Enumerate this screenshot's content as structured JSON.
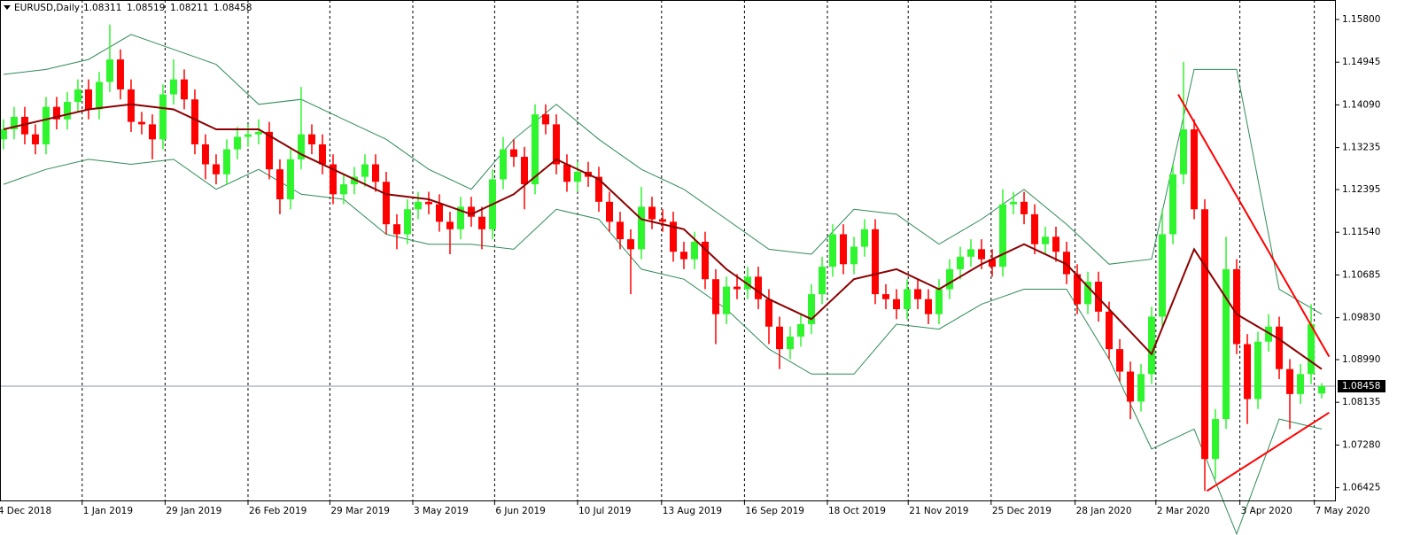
{
  "chart_data": {
    "type": "candlestick",
    "title": "EURUSD,Daily",
    "bull_color": "#2ef52e",
    "bear_color": "#ff0000",
    "xlim": [
      -0.33,
      125.33
    ],
    "ylim": [
      1.0617,
      1.1619
    ],
    "grid": true,
    "yticks": [
      {
        "value": 1.158,
        "label": "1.15800"
      },
      {
        "value": 1.14945,
        "label": "1.14945"
      },
      {
        "value": 1.1409,
        "label": "1.14090"
      },
      {
        "value": 1.13235,
        "label": "1.13235"
      },
      {
        "value": 1.12395,
        "label": "1.12395"
      },
      {
        "value": 1.1154,
        "label": "1.11540"
      },
      {
        "value": 1.10685,
        "label": "1.10685"
      },
      {
        "value": 1.0983,
        "label": "1.09830"
      },
      {
        "value": 1.0899,
        "label": "1.08990"
      },
      {
        "value": 1.08135,
        "label": "1.08135"
      },
      {
        "value": 1.0728,
        "label": "1.07280"
      },
      {
        "value": 1.06425,
        "label": "1.06425"
      }
    ],
    "xticks": [
      {
        "value": -0.6,
        "label": "4 Dec 2018"
      },
      {
        "value": 7.4,
        "label": "1 Jan 2019"
      },
      {
        "value": 15.2,
        "label": "29 Jan 2019"
      },
      {
        "value": 23,
        "label": "26 Feb 2019"
      },
      {
        "value": 30.7,
        "label": "29 Mar 2019"
      },
      {
        "value": 38.5,
        "label": "3 May 2019"
      },
      {
        "value": 46.2,
        "label": "6 Jun 2019"
      },
      {
        "value": 54,
        "label": "10 Jul 2019"
      },
      {
        "value": 61.9,
        "label": "13 Aug 2019"
      },
      {
        "value": 69.7,
        "label": "16 Sep 2019"
      },
      {
        "value": 77.5,
        "label": "18 Oct 2019"
      },
      {
        "value": 85.1,
        "label": "21 Nov 2019"
      },
      {
        "value": 92.9,
        "label": "25 Dec 2019"
      },
      {
        "value": 100.8,
        "label": "28 Jan 2020"
      },
      {
        "value": 108.4,
        "label": "2 Mar 2020"
      },
      {
        "value": 116.3,
        "label": "3 Apr 2020"
      },
      {
        "value": 123.3,
        "label": "7 May 2020"
      }
    ],
    "open": [
      1.134,
      1.136,
      1.1385,
      1.135,
      1.133,
      1.1405,
      1.138,
      1.1415,
      1.144,
      1.14,
      1.1455,
      1.15,
      1.144,
      1.1375,
      1.137,
      1.134,
      1.143,
      1.146,
      1.142,
      1.133,
      1.129,
      1.127,
      1.132,
      1.1345,
      1.135,
      1.1355,
      1.128,
      1.122,
      1.13,
      1.135,
      1.133,
      1.129,
      1.123,
      1.125,
      1.1265,
      1.129,
      1.1255,
      1.117,
      1.115,
      1.12,
      1.1215,
      1.121,
      1.1175,
      1.116,
      1.1205,
      1.1185,
      1.116,
      1.126,
      1.132,
      1.1305,
      1.125,
      1.139,
      1.137,
      1.129,
      1.1255,
      1.1275,
      1.1265,
      1.1215,
      1.1175,
      1.114,
      1.112,
      1.1205,
      1.118,
      1.1175,
      1.1115,
      1.11,
      1.1135,
      1.106,
      1.099,
      1.1045,
      1.104,
      1.1065,
      1.102,
      1.0965,
      1.092,
      1.0945,
      1.097,
      1.103,
      1.1085,
      1.115,
      1.109,
      1.1125,
      1.116,
      1.103,
      1.102,
      1.1,
      1.104,
      1.102,
      1.099,
      1.104,
      1.108,
      1.1105,
      1.112,
      1.11,
      1.1085,
      1.121,
      1.1215,
      1.119,
      1.113,
      1.1145,
      1.1115,
      1.107,
      1.101,
      1.1055,
      1.0995,
      1.092,
      1.0875,
      1.0815,
      1.087,
      1.0985,
      1.115,
      1.127,
      1.136,
      1.12,
      1.07,
      1.078,
      1.108,
      1.093,
      1.082,
      1.0935,
      1.0965,
      1.088,
      1.083,
      1.087,
      1.08311
    ],
    "high": [
      1.138,
      1.1405,
      1.1405,
      1.137,
      1.1425,
      1.1425,
      1.1435,
      1.146,
      1.146,
      1.1475,
      1.157,
      1.152,
      1.146,
      1.1395,
      1.139,
      1.145,
      1.15,
      1.148,
      1.144,
      1.135,
      1.131,
      1.134,
      1.1365,
      1.137,
      1.138,
      1.1375,
      1.13,
      1.132,
      1.1445,
      1.137,
      1.135,
      1.131,
      1.127,
      1.1285,
      1.131,
      1.131,
      1.1275,
      1.119,
      1.122,
      1.1235,
      1.1235,
      1.123,
      1.1195,
      1.1225,
      1.1225,
      1.1205,
      1.128,
      1.1345,
      1.134,
      1.1325,
      1.141,
      1.141,
      1.139,
      1.131,
      1.1295,
      1.1295,
      1.1285,
      1.1235,
      1.1195,
      1.116,
      1.1245,
      1.1225,
      1.12,
      1.1195,
      1.1135,
      1.1155,
      1.1155,
      1.108,
      1.1065,
      1.107,
      1.1085,
      1.1085,
      1.104,
      1.0985,
      1.0965,
      1.099,
      1.105,
      1.1105,
      1.117,
      1.117,
      1.1145,
      1.118,
      1.118,
      1.105,
      1.104,
      1.106,
      1.106,
      1.104,
      1.106,
      1.11,
      1.1125,
      1.114,
      1.114,
      1.112,
      1.124,
      1.1235,
      1.1235,
      1.121,
      1.1165,
      1.1165,
      1.1135,
      1.109,
      1.1075,
      1.1075,
      1.1015,
      1.094,
      1.0895,
      1.089,
      1.1005,
      1.12,
      1.129,
      1.1495,
      1.138,
      1.122,
      1.08,
      1.1145,
      1.11,
      1.095,
      1.0955,
      1.099,
      1.0985,
      1.09,
      1.089,
      1.101,
      1.08519
    ],
    "low": [
      1.132,
      1.134,
      1.133,
      1.131,
      1.131,
      1.136,
      1.136,
      1.1395,
      1.138,
      1.138,
      1.1435,
      1.142,
      1.1355,
      1.135,
      1.13,
      1.132,
      1.141,
      1.14,
      1.131,
      1.126,
      1.125,
      1.125,
      1.13,
      1.1325,
      1.133,
      1.126,
      1.119,
      1.12,
      1.128,
      1.131,
      1.127,
      1.121,
      1.121,
      1.123,
      1.1245,
      1.1235,
      1.115,
      1.112,
      1.113,
      1.118,
      1.119,
      1.1155,
      1.111,
      1.114,
      1.1165,
      1.112,
      1.114,
      1.124,
      1.1285,
      1.12,
      1.123,
      1.135,
      1.127,
      1.1235,
      1.1235,
      1.1245,
      1.1195,
      1.1155,
      1.112,
      1.103,
      1.11,
      1.116,
      1.1155,
      1.1095,
      1.108,
      1.108,
      1.104,
      1.093,
      1.097,
      1.102,
      1.102,
      1.1,
      1.093,
      1.088,
      1.09,
      1.0925,
      1.095,
      1.101,
      1.1065,
      1.107,
      1.107,
      1.1105,
      1.101,
      1.1,
      1.098,
      1.098,
      1.1,
      1.097,
      1.097,
      1.102,
      1.106,
      1.1085,
      1.108,
      1.1065,
      1.1065,
      1.119,
      1.117,
      1.111,
      1.111,
      1.1095,
      1.105,
      1.099,
      1.099,
      1.0975,
      1.09,
      1.0855,
      1.078,
      1.0795,
      1.085,
      1.0965,
      1.113,
      1.125,
      1.118,
      1.0636,
      1.066,
      1.076,
      1.091,
      1.077,
      1.08,
      1.0915,
      1.086,
      1.076,
      1.081,
      1.085,
      1.08211
    ],
    "close": [
      1.136,
      1.1385,
      1.135,
      1.133,
      1.1405,
      1.138,
      1.1415,
      1.144,
      1.14,
      1.1455,
      1.15,
      1.144,
      1.1375,
      1.137,
      1.134,
      1.143,
      1.146,
      1.142,
      1.133,
      1.129,
      1.127,
      1.132,
      1.1345,
      1.135,
      1.1355,
      1.128,
      1.122,
      1.13,
      1.135,
      1.133,
      1.129,
      1.123,
      1.125,
      1.1265,
      1.129,
      1.1255,
      1.117,
      1.115,
      1.12,
      1.1215,
      1.121,
      1.1175,
      1.116,
      1.1205,
      1.1185,
      1.116,
      1.126,
      1.132,
      1.1305,
      1.125,
      1.139,
      1.137,
      1.129,
      1.1255,
      1.1275,
      1.1265,
      1.1215,
      1.1175,
      1.114,
      1.112,
      1.1205,
      1.118,
      1.1175,
      1.1115,
      1.11,
      1.1135,
      1.106,
      1.099,
      1.1045,
      1.104,
      1.1065,
      1.102,
      1.0965,
      1.092,
      1.0945,
      1.097,
      1.103,
      1.1085,
      1.115,
      1.109,
      1.1125,
      1.116,
      1.103,
      1.102,
      1.1,
      1.104,
      1.102,
      1.099,
      1.104,
      1.108,
      1.1105,
      1.112,
      1.11,
      1.1085,
      1.121,
      1.1215,
      1.119,
      1.113,
      1.1145,
      1.1115,
      1.107,
      1.101,
      1.1055,
      1.0995,
      1.092,
      1.0875,
      1.0815,
      1.087,
      1.0985,
      1.115,
      1.127,
      1.136,
      1.12,
      1.07,
      1.078,
      1.108,
      1.093,
      1.082,
      1.0935,
      1.0965,
      1.088,
      1.083,
      1.087,
      1.097,
      1.08458
    ],
    "ma": {
      "color": "#8b0000",
      "x": [
        0,
        4,
        8,
        12,
        16,
        20,
        24,
        28,
        32,
        36,
        40,
        44,
        48,
        52,
        56,
        60,
        64,
        68,
        72,
        76,
        80,
        84,
        88,
        92,
        96,
        100,
        104,
        108,
        112,
        116,
        120,
        124
      ],
      "values": [
        1.136,
        1.138,
        1.14,
        1.141,
        1.14,
        1.136,
        1.136,
        1.131,
        1.127,
        1.123,
        1.122,
        1.119,
        1.123,
        1.13,
        1.126,
        1.118,
        1.116,
        1.108,
        1.102,
        1.098,
        1.106,
        1.108,
        1.104,
        1.109,
        1.113,
        1.109,
        1.1,
        1.091,
        1.112,
        1.099,
        1.094,
        1.088
      ]
    },
    "bands": {
      "color": "#2e8b57",
      "x": [
        0,
        4,
        8,
        12,
        16,
        20,
        24,
        28,
        32,
        36,
        40,
        44,
        48,
        52,
        56,
        60,
        64,
        68,
        72,
        76,
        80,
        84,
        88,
        92,
        96,
        100,
        104,
        108,
        112,
        116,
        120,
        124
      ],
      "upper": [
        1.147,
        1.148,
        1.15,
        1.155,
        1.152,
        1.149,
        1.141,
        1.142,
        1.138,
        1.134,
        1.128,
        1.124,
        1.134,
        1.141,
        1.134,
        1.128,
        1.124,
        1.118,
        1.112,
        1.111,
        1.12,
        1.119,
        1.113,
        1.118,
        1.124,
        1.117,
        1.109,
        1.11,
        1.148,
        1.148,
        1.104,
        1.099
      ],
      "lower": [
        1.125,
        1.128,
        1.13,
        1.129,
        1.13,
        1.124,
        1.128,
        1.123,
        1.122,
        1.115,
        1.113,
        1.113,
        1.112,
        1.12,
        1.118,
        1.108,
        1.106,
        1.1,
        1.092,
        1.087,
        1.087,
        1.097,
        1.096,
        1.101,
        1.104,
        1.104,
        1.09,
        1.072,
        1.076,
        1.055,
        1.078,
        1.076
      ]
    },
    "trendlines": [
      {
        "color": "#ff0000",
        "x": [
          110.5,
          124.7
        ],
        "values": [
          1.143,
          1.0905
        ]
      },
      {
        "color": "#ff0000",
        "x": [
          113.2,
          124.7
        ],
        "values": [
          1.0636,
          1.0793
        ]
      }
    ]
  }
}
